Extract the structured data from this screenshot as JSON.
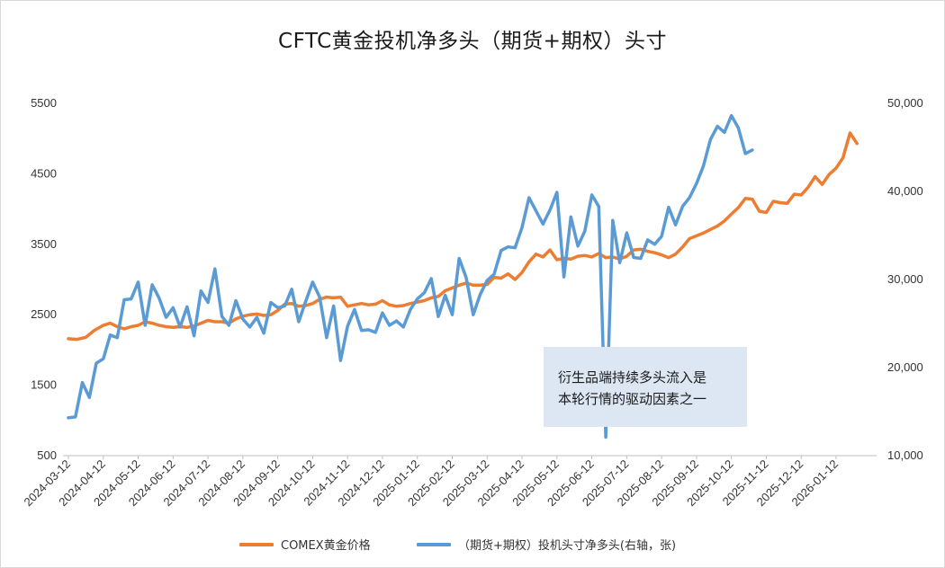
{
  "chart_data": {
    "type": "line",
    "title": "CFTC黄金投机净多头（期货+期权）头寸",
    "left_axis": {
      "ticks": [
        "5500",
        "4500",
        "3500",
        "2500",
        "1500",
        "500"
      ],
      "range": [
        500,
        5500
      ]
    },
    "right_axis": {
      "ticks": [
        "50,000",
        "40,000",
        "30,000",
        "20,000",
        "10,000"
      ],
      "range": [
        10000,
        50000
      ]
    },
    "x_labels": [
      "2024-03-12",
      "2024-04-12",
      "2024-05-12",
      "2024-06-12",
      "2024-07-12",
      "2024-08-12",
      "2024-09-12",
      "2024-10-12",
      "2024-11-12",
      "2024-12-12",
      "2025-01-12",
      "2025-02-12",
      "2025-03-12",
      "2025-04-12",
      "2025-05-12",
      "2025-06-12",
      "2025-07-12",
      "2025-08-12",
      "2025-09-12",
      "2025-10-12",
      "2025-11-12",
      "2025-12-12",
      "2026-01-12"
    ],
    "x_range": [
      0,
      22.8
    ],
    "series": [
      {
        "name": "COMEX黄金价格",
        "axis": "left",
        "color": "#ed7d31",
        "points": [
          [
            0,
            2160
          ],
          [
            0.25,
            2150
          ],
          [
            0.5,
            2180
          ],
          [
            0.75,
            2280
          ],
          [
            1,
            2350
          ],
          [
            1.2,
            2380
          ],
          [
            1.4,
            2330
          ],
          [
            1.6,
            2300
          ],
          [
            1.8,
            2330
          ],
          [
            2,
            2350
          ],
          [
            2.2,
            2400
          ],
          [
            2.4,
            2380
          ],
          [
            2.6,
            2350
          ],
          [
            2.8,
            2330
          ],
          [
            3,
            2320
          ],
          [
            3.2,
            2330
          ],
          [
            3.4,
            2320
          ],
          [
            3.6,
            2340
          ],
          [
            3.8,
            2380
          ],
          [
            4,
            2420
          ],
          [
            4.2,
            2400
          ],
          [
            4.4,
            2400
          ],
          [
            4.6,
            2380
          ],
          [
            4.8,
            2440
          ],
          [
            5,
            2480
          ],
          [
            5.2,
            2500
          ],
          [
            5.4,
            2510
          ],
          [
            5.6,
            2490
          ],
          [
            5.8,
            2500
          ],
          [
            6,
            2560
          ],
          [
            6.2,
            2650
          ],
          [
            6.4,
            2660
          ],
          [
            6.6,
            2620
          ],
          [
            6.8,
            2630
          ],
          [
            7,
            2660
          ],
          [
            7.2,
            2720
          ],
          [
            7.4,
            2750
          ],
          [
            7.6,
            2740
          ],
          [
            7.8,
            2750
          ],
          [
            8,
            2620
          ],
          [
            8.2,
            2640
          ],
          [
            8.4,
            2660
          ],
          [
            8.6,
            2640
          ],
          [
            8.8,
            2650
          ],
          [
            9,
            2700
          ],
          [
            9.2,
            2640
          ],
          [
            9.4,
            2620
          ],
          [
            9.6,
            2630
          ],
          [
            9.8,
            2660
          ],
          [
            10,
            2680
          ],
          [
            10.2,
            2700
          ],
          [
            10.4,
            2740
          ],
          [
            10.6,
            2760
          ],
          [
            10.8,
            2840
          ],
          [
            11,
            2880
          ],
          [
            11.2,
            2920
          ],
          [
            11.4,
            2950
          ],
          [
            11.6,
            2920
          ],
          [
            11.8,
            2920
          ],
          [
            12,
            2930
          ],
          [
            12.2,
            3030
          ],
          [
            12.4,
            3020
          ],
          [
            12.6,
            3080
          ],
          [
            12.8,
            3000
          ],
          [
            13,
            3100
          ],
          [
            13.2,
            3250
          ],
          [
            13.4,
            3360
          ],
          [
            13.6,
            3320
          ],
          [
            13.8,
            3420
          ],
          [
            14,
            3280
          ],
          [
            14.2,
            3300
          ],
          [
            14.4,
            3290
          ],
          [
            14.6,
            3330
          ],
          [
            14.8,
            3340
          ],
          [
            15,
            3320
          ],
          [
            15.2,
            3370
          ],
          [
            15.4,
            3310
          ],
          [
            15.6,
            3320
          ],
          [
            15.8,
            3290
          ],
          [
            16,
            3330
          ],
          [
            16.2,
            3420
          ],
          [
            16.4,
            3430
          ],
          [
            16.6,
            3400
          ],
          [
            16.8,
            3380
          ],
          [
            17,
            3350
          ],
          [
            17.2,
            3310
          ],
          [
            17.4,
            3360
          ],
          [
            17.6,
            3460
          ],
          [
            17.8,
            3580
          ],
          [
            18,
            3620
          ],
          [
            18.2,
            3660
          ],
          [
            18.4,
            3710
          ],
          [
            18.6,
            3760
          ],
          [
            18.8,
            3830
          ],
          [
            19,
            3930
          ],
          [
            19.2,
            4020
          ],
          [
            19.4,
            4150
          ],
          [
            19.6,
            4140
          ],
          [
            19.8,
            3970
          ],
          [
            20,
            3950
          ],
          [
            20.2,
            4110
          ],
          [
            20.4,
            4090
          ],
          [
            20.6,
            4080
          ],
          [
            20.8,
            4210
          ],
          [
            21,
            4200
          ],
          [
            21.2,
            4310
          ],
          [
            21.4,
            4460
          ],
          [
            21.6,
            4350
          ],
          [
            21.8,
            4490
          ],
          [
            22,
            4580
          ],
          [
            22.2,
            4730
          ],
          [
            22.4,
            5080
          ],
          [
            22.6,
            4930
          ]
        ]
      },
      {
        "name": "（期货+期权）投机头寸净多头(右轴，张)",
        "axis": "right",
        "color": "#5b9bd5",
        "points": [
          [
            0,
            14300
          ],
          [
            0.2,
            14400
          ],
          [
            0.4,
            18300
          ],
          [
            0.6,
            16600
          ],
          [
            0.8,
            20500
          ],
          [
            1,
            21000
          ],
          [
            1.2,
            23700
          ],
          [
            1.4,
            23400
          ],
          [
            1.6,
            27700
          ],
          [
            1.8,
            27800
          ],
          [
            2,
            29700
          ],
          [
            2.2,
            24800
          ],
          [
            2.4,
            29400
          ],
          [
            2.6,
            27900
          ],
          [
            2.8,
            25700
          ],
          [
            3,
            26800
          ],
          [
            3.2,
            24600
          ],
          [
            3.4,
            26900
          ],
          [
            3.6,
            23600
          ],
          [
            3.8,
            28700
          ],
          [
            4,
            27400
          ],
          [
            4.2,
            31200
          ],
          [
            4.4,
            25800
          ],
          [
            4.6,
            24800
          ],
          [
            4.8,
            27600
          ],
          [
            5,
            25500
          ],
          [
            5.2,
            24600
          ],
          [
            5.4,
            25700
          ],
          [
            5.6,
            23900
          ],
          [
            5.8,
            27400
          ],
          [
            6,
            26800
          ],
          [
            6.2,
            27000
          ],
          [
            6.4,
            28900
          ],
          [
            6.6,
            25200
          ],
          [
            6.8,
            27500
          ],
          [
            7,
            29700
          ],
          [
            7.2,
            28000
          ],
          [
            7.4,
            23400
          ],
          [
            7.6,
            27000
          ],
          [
            7.8,
            20800
          ],
          [
            8,
            24700
          ],
          [
            8.2,
            26600
          ],
          [
            8.4,
            24200
          ],
          [
            8.6,
            24300
          ],
          [
            8.8,
            24000
          ],
          [
            9,
            26200
          ],
          [
            9.2,
            24800
          ],
          [
            9.4,
            25300
          ],
          [
            9.6,
            24600
          ],
          [
            9.8,
            26600
          ],
          [
            10,
            27800
          ],
          [
            10.2,
            28500
          ],
          [
            10.4,
            30100
          ],
          [
            10.6,
            25800
          ],
          [
            10.8,
            28200
          ],
          [
            11,
            26000
          ],
          [
            11.2,
            32400
          ],
          [
            11.4,
            30200
          ],
          [
            11.6,
            26000
          ],
          [
            11.8,
            28300
          ],
          [
            12,
            29900
          ],
          [
            12.2,
            30600
          ],
          [
            12.4,
            33300
          ],
          [
            12.6,
            33700
          ],
          [
            12.8,
            33600
          ],
          [
            13,
            35900
          ],
          [
            13.2,
            39300
          ],
          [
            13.4,
            37800
          ],
          [
            13.6,
            36300
          ],
          [
            13.8,
            37900
          ],
          [
            14,
            39900
          ],
          [
            14.2,
            30300
          ],
          [
            14.4,
            37100
          ],
          [
            14.6,
            33800
          ],
          [
            14.8,
            35500
          ],
          [
            15,
            39600
          ],
          [
            15.2,
            38300
          ],
          [
            15.4,
            12100
          ],
          [
            15.6,
            36700
          ],
          [
            15.8,
            31900
          ],
          [
            16,
            35300
          ],
          [
            16.2,
            32500
          ],
          [
            16.4,
            32400
          ],
          [
            16.6,
            34500
          ],
          [
            16.8,
            34000
          ],
          [
            17,
            34900
          ],
          [
            17.2,
            38200
          ],
          [
            17.4,
            36200
          ],
          [
            17.6,
            38300
          ],
          [
            17.8,
            39300
          ],
          [
            18,
            40900
          ],
          [
            18.2,
            42900
          ],
          [
            18.4,
            45900
          ],
          [
            18.6,
            47400
          ],
          [
            18.8,
            46700
          ],
          [
            19,
            48600
          ],
          [
            19.2,
            47200
          ],
          [
            19.4,
            44300
          ],
          [
            19.6,
            44700
          ]
        ]
      }
    ],
    "annotation": [
      "衍生品端持续多头流入是",
      "本轮行情的驱动因素之一"
    ],
    "legend": [
      "COMEX黄金价格",
      "（期货+期权）投机头寸净多头(右轴，张)"
    ]
  }
}
